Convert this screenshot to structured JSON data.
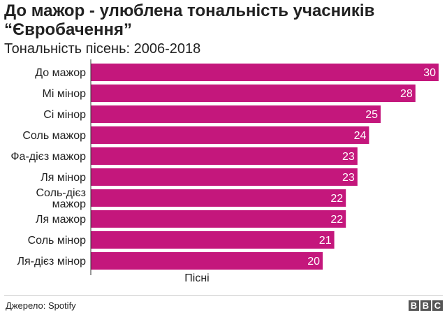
{
  "header": {
    "title": "До мажор - улюблена тональність учасників “Євробачення”",
    "subtitle": "Тональність пісень: 2006-2018"
  },
  "chart_data": {
    "type": "bar",
    "orientation": "horizontal",
    "title": "До мажор - улюблена тональність учасників “Євробачення”",
    "subtitle": "Тональність пісень: 2006-2018",
    "xlabel": "Пісні",
    "ylabel": "",
    "categories": [
      "До мажор",
      "Мі мінор",
      "Сі мінор",
      "Соль мажор",
      "Фа-дієз мажор",
      "Ля мінор",
      "Соль-дієз мажор",
      "Ля мажор",
      "Соль мінор",
      "Ля-дієз мінор"
    ],
    "values": [
      30,
      28,
      25,
      24,
      23,
      23,
      22,
      22,
      21,
      20
    ],
    "xlim": [
      0,
      30
    ],
    "grid": false,
    "bar_color": "#c4177c",
    "label_color": "#ffffff"
  },
  "footer": {
    "source": "Джерело: Spotify",
    "logo": [
      "B",
      "B",
      "C"
    ]
  }
}
